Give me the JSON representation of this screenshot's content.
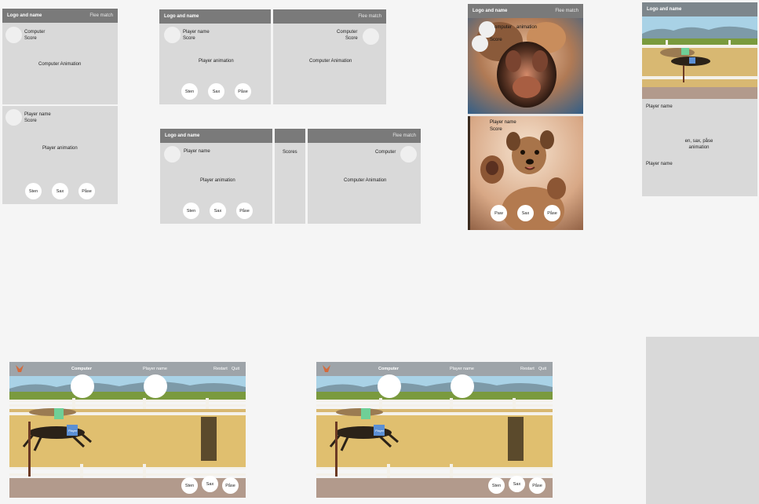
{
  "colors": {
    "canvas": "#f5f5f5",
    "frame": "#d9d9d9",
    "header": "#7a7a7a",
    "button": "#ffffff",
    "race_header": "#9ea4a9",
    "sky": "#a9d2e6",
    "sand": "#d8b872",
    "grass": "#7a9a3e"
  },
  "header": {
    "logo": "Logo and name",
    "match": "Flee match"
  },
  "frame1": {
    "computer": "Computer",
    "score": "Score",
    "computer_animation": "Computer Animation",
    "player": "Player name",
    "player_score": "Score",
    "player_animation": "Player animation",
    "buttons": [
      "Sten",
      "Sax",
      "Påse"
    ]
  },
  "frame2": {
    "player": "Player name",
    "score": "Score",
    "computer": "Computer",
    "computer_score": "Score",
    "player_animation": "Player animation",
    "computer_animation": "Computer Animation",
    "buttons": [
      "Sten",
      "Sax",
      "Påse"
    ]
  },
  "frame3": {
    "player": "Player name",
    "scores": "Scores",
    "computer": "Computer",
    "player_animation": "Player animation",
    "computer_animation": "Computer Animation",
    "buttons": [
      "Sten",
      "Sax",
      "Påse"
    ]
  },
  "frame4": {
    "computer_overlay": "omputer",
    "animation_overlay": "animation",
    "score_overlay": "Score",
    "player": "Player name",
    "player_score": "Score",
    "buttons": [
      "Paw",
      "Sax",
      "Påse"
    ]
  },
  "frame5": {
    "logo": "Logo and name",
    "player1": "Player name",
    "animation": "en, sax, påse\nanimation",
    "player2": "Player name"
  },
  "race": {
    "computer": "Computer",
    "player": "Player name",
    "restart": "Restart",
    "quit": "Quit",
    "jersey": "Player",
    "buttons": [
      "Sten",
      "Sax",
      "Påse"
    ]
  }
}
